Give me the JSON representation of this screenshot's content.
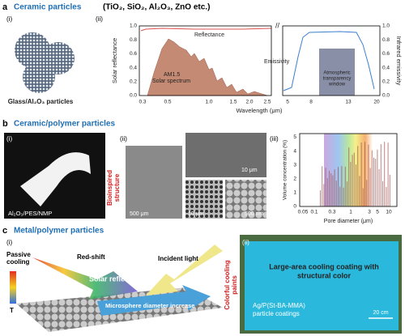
{
  "panels": [
    {
      "label": "a",
      "title": "Ceramic particles",
      "subtitle": "(TiO₂, SiO₂, Al₂O₃, ZnO etc.)",
      "sub1": {
        "label": "(i)",
        "caption": "Glass/Al₂O₃ particles"
      },
      "sub2": {
        "label": "(ii)",
        "y_label": "Solar reflectance",
        "y2_label": "Infrared emissivity",
        "x_label": "Wavelength (μm)",
        "yticks": [
          "0.0",
          "0.2",
          "0.4",
          "0.6",
          "0.8",
          "1.0"
        ],
        "xticks": [
          "0.3",
          "0.5",
          "1.0",
          "1.5",
          "2.0",
          "2.5",
          "5",
          "8",
          "13",
          "20"
        ],
        "annotations": [
          "Reflectance",
          "AM1.5",
          "Solar spectrum",
          "Emissivity",
          "Atmospheric",
          "transparency",
          "window"
        ]
      }
    },
    {
      "label": "b",
      "title": "Ceramic/polymer particles",
      "sub1": {
        "label": "(i)",
        "caption": "Al₂O₃/PES/NMP"
      },
      "sub2": {
        "label": "(ii)",
        "side_label": "Bioinspired",
        "side_label2": "structure",
        "scale_bars": [
          "10 μm",
          "500 μm",
          "10 μm",
          "500 nm"
        ]
      },
      "sub3": {
        "label": "(iii)",
        "y_label": "Volume concentration (%)",
        "x_label": "Pore diameter (μm)",
        "yticks": [
          "0",
          "1",
          "2",
          "3",
          "4",
          "5"
        ],
        "xticks": [
          "0.05",
          "0.1",
          "0.3",
          "1",
          "3",
          "5",
          "10"
        ]
      }
    },
    {
      "label": "c",
      "title": "Metal/polymer particles",
      "sub1": {
        "label": "(i)",
        "texts": [
          "Passive",
          "cooling",
          "Red-shift",
          "Incident light",
          "Solar reflection",
          "T",
          "Microsphere diameter increase"
        ]
      },
      "side_label": "Colorful cooling",
      "side_label2": "paints",
      "sub2": {
        "label": "(ii)",
        "title": "Large-area cooling coating with",
        "title2": "structural color",
        "caption": "Ag/P(St-BA-MMA)",
        "caption2": "particle coatings",
        "scale": "20 cm"
      }
    }
  ]
}
